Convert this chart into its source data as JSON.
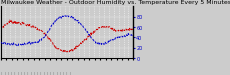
{
  "title": "Milwaukee Weather - Outdoor Humidity vs. Temperature Every 5 Minutes",
  "bg_color": "#cccccc",
  "plot_bg": "#cccccc",
  "red_line_color": "#cc0000",
  "blue_line_color": "#0000cc",
  "red_ylim": [
    -10,
    105
  ],
  "blue_ylim": [
    0,
    100
  ],
  "right_ytick_vals": [
    80,
    60,
    40,
    20,
    0
  ],
  "right_ytick_labels": [
    "80",
    "60",
    "40",
    "20",
    "0"
  ],
  "title_fontsize": 4.5,
  "tick_fontsize": 3.5,
  "n_points": 288,
  "red_data_x": [
    0.0,
    0.04,
    0.07,
    0.1,
    0.14,
    0.18,
    0.22,
    0.26,
    0.3,
    0.34,
    0.38,
    0.42,
    0.46,
    0.5,
    0.54,
    0.56,
    0.6,
    0.65,
    0.7,
    0.74,
    0.78,
    0.82,
    0.86,
    0.9,
    0.94,
    0.97,
    1.0
  ],
  "red_data_y": [
    55,
    65,
    72,
    70,
    68,
    65,
    62,
    58,
    52,
    42,
    28,
    12,
    8,
    6,
    8,
    12,
    22,
    35,
    48,
    57,
    60,
    58,
    52,
    50,
    52,
    55,
    53
  ],
  "blue_data_x": [
    0.0,
    0.04,
    0.08,
    0.12,
    0.16,
    0.2,
    0.24,
    0.28,
    0.32,
    0.36,
    0.4,
    0.44,
    0.48,
    0.52,
    0.56,
    0.6,
    0.64,
    0.68,
    0.72,
    0.76,
    0.8,
    0.84,
    0.88,
    0.92,
    0.96,
    1.0
  ],
  "blue_data_y": [
    30,
    28,
    27,
    26,
    27,
    28,
    30,
    32,
    38,
    52,
    68,
    78,
    82,
    80,
    76,
    68,
    55,
    40,
    30,
    28,
    30,
    35,
    40,
    42,
    45,
    44
  ],
  "n_vgrid": 28,
  "n_hgrid": 6
}
